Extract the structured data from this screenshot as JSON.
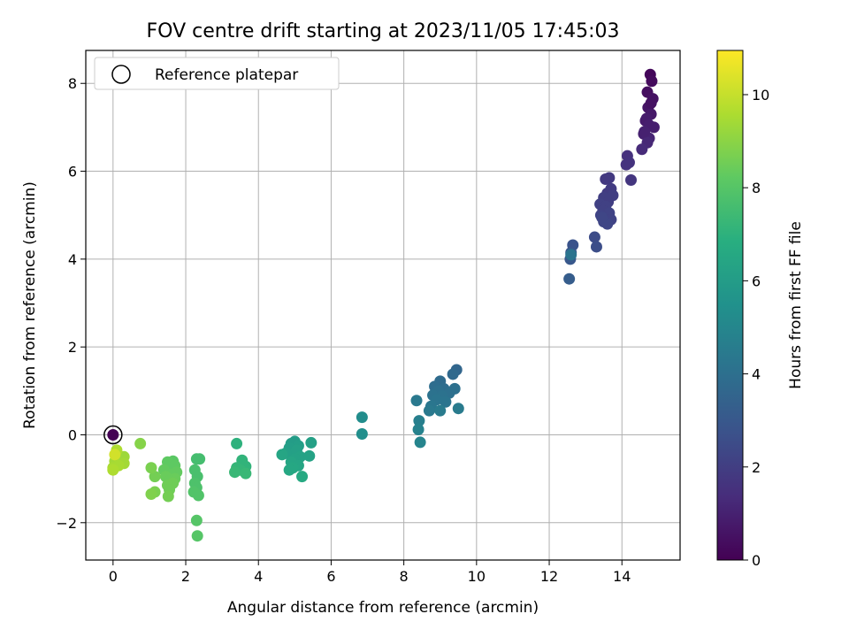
{
  "chart_data": {
    "type": "scatter",
    "title": "FOV centre drift starting at 2023/11/05 17:45:03",
    "xlabel": "Angular distance from reference (arcmin)",
    "ylabel": "Rotation from reference (arcmin)",
    "colorbar_label": "Hours from first FF file",
    "xlim": [
      -0.75,
      15.6
    ],
    "ylim": [
      -2.85,
      8.75
    ],
    "clim": [
      0,
      10.95
    ],
    "colormap": "viridis",
    "grid": true,
    "legend": {
      "position": "top-left",
      "entries": [
        "Reference platepar"
      ]
    },
    "x_ticks": [
      "0",
      "2",
      "4",
      "6",
      "8",
      "10",
      "12",
      "14"
    ],
    "y_ticks": [
      "−2",
      "0",
      "2",
      "4",
      "6",
      "8"
    ],
    "c_ticks": [
      "0",
      "2",
      "4",
      "6",
      "8",
      "10"
    ],
    "reference_point": {
      "x": 0,
      "y": 0
    },
    "points": [
      {
        "x": 14.78,
        "y": 8.2,
        "c": 0.2
      },
      {
        "x": 14.82,
        "y": 8.05,
        "c": 0.3
      },
      {
        "x": 14.7,
        "y": 7.8,
        "c": 0.4
      },
      {
        "x": 14.85,
        "y": 7.65,
        "c": 0.5
      },
      {
        "x": 14.72,
        "y": 7.45,
        "c": 0.6
      },
      {
        "x": 14.8,
        "y": 7.3,
        "c": 0.7
      },
      {
        "x": 14.65,
        "y": 7.15,
        "c": 0.8
      },
      {
        "x": 14.88,
        "y": 7.0,
        "c": 0.9
      },
      {
        "x": 14.6,
        "y": 6.85,
        "c": 1.0
      },
      {
        "x": 14.75,
        "y": 6.75,
        "c": 1.1
      },
      {
        "x": 14.7,
        "y": 6.65,
        "c": 1.2
      },
      {
        "x": 14.55,
        "y": 6.5,
        "c": 1.3
      },
      {
        "x": 14.8,
        "y": 7.55,
        "c": 0.5
      },
      {
        "x": 14.68,
        "y": 7.2,
        "c": 0.8
      },
      {
        "x": 14.75,
        "y": 7.05,
        "c": 0.9
      },
      {
        "x": 14.62,
        "y": 6.9,
        "c": 1.0
      },
      {
        "x": 14.15,
        "y": 6.35,
        "c": 1.5
      },
      {
        "x": 14.2,
        "y": 6.2,
        "c": 1.6
      },
      {
        "x": 14.12,
        "y": 6.15,
        "c": 1.6
      },
      {
        "x": 14.25,
        "y": 5.8,
        "c": 1.7
      },
      {
        "x": 13.65,
        "y": 5.85,
        "c": 1.8
      },
      {
        "x": 13.55,
        "y": 5.82,
        "c": 1.8
      },
      {
        "x": 13.7,
        "y": 5.6,
        "c": 1.9
      },
      {
        "x": 13.6,
        "y": 5.5,
        "c": 1.9
      },
      {
        "x": 13.75,
        "y": 5.45,
        "c": 2.0
      },
      {
        "x": 13.5,
        "y": 5.4,
        "c": 2.0
      },
      {
        "x": 13.62,
        "y": 5.3,
        "c": 2.0
      },
      {
        "x": 13.4,
        "y": 5.25,
        "c": 2.1
      },
      {
        "x": 13.55,
        "y": 5.2,
        "c": 2.1
      },
      {
        "x": 13.48,
        "y": 5.1,
        "c": 2.1
      },
      {
        "x": 13.65,
        "y": 5.05,
        "c": 2.2
      },
      {
        "x": 13.42,
        "y": 5.0,
        "c": 2.2
      },
      {
        "x": 13.7,
        "y": 4.9,
        "c": 2.2
      },
      {
        "x": 13.5,
        "y": 4.85,
        "c": 2.3
      },
      {
        "x": 13.6,
        "y": 4.8,
        "c": 2.3
      },
      {
        "x": 13.45,
        "y": 4.95,
        "c": 2.3
      },
      {
        "x": 13.25,
        "y": 4.5,
        "c": 2.5
      },
      {
        "x": 13.3,
        "y": 4.28,
        "c": 2.6
      },
      {
        "x": 12.65,
        "y": 4.32,
        "c": 2.8
      },
      {
        "x": 12.6,
        "y": 4.15,
        "c": 2.9
      },
      {
        "x": 12.58,
        "y": 4.0,
        "c": 3.0
      },
      {
        "x": 12.55,
        "y": 3.55,
        "c": 3.2
      },
      {
        "x": 12.6,
        "y": 4.1,
        "c": 4.2
      },
      {
        "x": 9.45,
        "y": 1.48,
        "c": 3.6
      },
      {
        "x": 9.35,
        "y": 1.38,
        "c": 3.7
      },
      {
        "x": 9.0,
        "y": 1.22,
        "c": 3.8
      },
      {
        "x": 8.85,
        "y": 1.1,
        "c": 3.9
      },
      {
        "x": 9.1,
        "y": 1.05,
        "c": 3.9
      },
      {
        "x": 9.4,
        "y": 1.05,
        "c": 4.0
      },
      {
        "x": 8.95,
        "y": 1.0,
        "c": 4.0
      },
      {
        "x": 9.25,
        "y": 0.95,
        "c": 4.0
      },
      {
        "x": 8.8,
        "y": 0.9,
        "c": 4.1
      },
      {
        "x": 9.05,
        "y": 0.88,
        "c": 4.1
      },
      {
        "x": 8.9,
        "y": 0.8,
        "c": 4.2
      },
      {
        "x": 9.15,
        "y": 0.75,
        "c": 4.2
      },
      {
        "x": 8.75,
        "y": 0.65,
        "c": 4.3
      },
      {
        "x": 8.35,
        "y": 0.78,
        "c": 4.4
      },
      {
        "x": 8.7,
        "y": 0.55,
        "c": 4.4
      },
      {
        "x": 9.0,
        "y": 0.55,
        "c": 4.5
      },
      {
        "x": 9.5,
        "y": 0.6,
        "c": 4.5
      },
      {
        "x": 8.42,
        "y": 0.32,
        "c": 4.7
      },
      {
        "x": 8.4,
        "y": 0.12,
        "c": 4.8
      },
      {
        "x": 8.45,
        "y": -0.17,
        "c": 4.9
      },
      {
        "x": 6.85,
        "y": 0.4,
        "c": 5.3
      },
      {
        "x": 6.85,
        "y": 0.02,
        "c": 5.4
      },
      {
        "x": 5.0,
        "y": -0.15,
        "c": 6.0
      },
      {
        "x": 4.9,
        "y": -0.2,
        "c": 6.0
      },
      {
        "x": 5.1,
        "y": -0.25,
        "c": 6.1
      },
      {
        "x": 4.85,
        "y": -0.3,
        "c": 6.1
      },
      {
        "x": 5.05,
        "y": -0.35,
        "c": 6.2
      },
      {
        "x": 4.95,
        "y": -0.45,
        "c": 6.2
      },
      {
        "x": 4.75,
        "y": -0.42,
        "c": 6.2
      },
      {
        "x": 5.15,
        "y": -0.5,
        "c": 6.3
      },
      {
        "x": 5.0,
        "y": -0.55,
        "c": 6.3
      },
      {
        "x": 4.9,
        "y": -0.62,
        "c": 6.4
      },
      {
        "x": 5.1,
        "y": -0.7,
        "c": 6.4
      },
      {
        "x": 4.95,
        "y": -0.75,
        "c": 6.5
      },
      {
        "x": 4.85,
        "y": -0.8,
        "c": 6.5
      },
      {
        "x": 5.2,
        "y": -0.95,
        "c": 6.6
      },
      {
        "x": 5.45,
        "y": -0.18,
        "c": 6.2
      },
      {
        "x": 5.4,
        "y": -0.48,
        "c": 6.3
      },
      {
        "x": 4.65,
        "y": -0.45,
        "c": 6.4
      },
      {
        "x": 3.4,
        "y": -0.2,
        "c": 7.0
      },
      {
        "x": 3.55,
        "y": -0.58,
        "c": 7.1
      },
      {
        "x": 3.65,
        "y": -0.72,
        "c": 7.1
      },
      {
        "x": 3.4,
        "y": -0.75,
        "c": 7.2
      },
      {
        "x": 3.5,
        "y": -0.8,
        "c": 7.2
      },
      {
        "x": 3.35,
        "y": -0.85,
        "c": 7.3
      },
      {
        "x": 3.65,
        "y": -0.88,
        "c": 7.3
      },
      {
        "x": 2.3,
        "y": -0.55,
        "c": 7.6
      },
      {
        "x": 2.38,
        "y": -0.55,
        "c": 7.6
      },
      {
        "x": 2.25,
        "y": -0.8,
        "c": 7.7
      },
      {
        "x": 2.32,
        "y": -0.95,
        "c": 7.7
      },
      {
        "x": 2.25,
        "y": -1.1,
        "c": 7.8
      },
      {
        "x": 2.3,
        "y": -1.2,
        "c": 7.8
      },
      {
        "x": 2.22,
        "y": -1.3,
        "c": 7.9
      },
      {
        "x": 2.35,
        "y": -1.38,
        "c": 7.9
      },
      {
        "x": 2.3,
        "y": -1.95,
        "c": 8.0
      },
      {
        "x": 2.32,
        "y": -2.3,
        "c": 8.0
      },
      {
        "x": 1.65,
        "y": -0.6,
        "c": 8.1
      },
      {
        "x": 1.5,
        "y": -0.62,
        "c": 8.2
      },
      {
        "x": 1.7,
        "y": -0.7,
        "c": 8.2
      },
      {
        "x": 1.55,
        "y": -0.75,
        "c": 8.2
      },
      {
        "x": 1.4,
        "y": -0.8,
        "c": 8.3
      },
      {
        "x": 1.75,
        "y": -0.85,
        "c": 8.3
      },
      {
        "x": 1.6,
        "y": -0.9,
        "c": 8.3
      },
      {
        "x": 1.45,
        "y": -0.95,
        "c": 8.4
      },
      {
        "x": 1.7,
        "y": -1.0,
        "c": 8.4
      },
      {
        "x": 1.55,
        "y": -1.05,
        "c": 8.4
      },
      {
        "x": 1.65,
        "y": -1.1,
        "c": 8.5
      },
      {
        "x": 1.5,
        "y": -1.15,
        "c": 8.5
      },
      {
        "x": 1.55,
        "y": -1.25,
        "c": 8.5
      },
      {
        "x": 1.52,
        "y": -1.4,
        "c": 8.6
      },
      {
        "x": 1.15,
        "y": -0.95,
        "c": 8.6
      },
      {
        "x": 1.05,
        "y": -0.75,
        "c": 8.7
      },
      {
        "x": 1.15,
        "y": -1.3,
        "c": 8.7
      },
      {
        "x": 1.05,
        "y": -1.35,
        "c": 8.8
      },
      {
        "x": 0.75,
        "y": -0.2,
        "c": 8.9
      },
      {
        "x": 0.3,
        "y": -0.5,
        "c": 9.3
      },
      {
        "x": 0.2,
        "y": -0.6,
        "c": 9.3
      },
      {
        "x": 0.3,
        "y": -0.65,
        "c": 9.4
      },
      {
        "x": 0.05,
        "y": -0.6,
        "c": 9.4
      },
      {
        "x": 0.15,
        "y": -0.7,
        "c": 9.5
      },
      {
        "x": 0.0,
        "y": -0.75,
        "c": 9.5
      },
      {
        "x": 0.1,
        "y": -0.35,
        "c": 9.6
      },
      {
        "x": 0.05,
        "y": -0.45,
        "c": 10.2
      },
      {
        "x": 0.0,
        "y": -0.8,
        "c": 9.6
      },
      {
        "x": 0.0,
        "y": 0.0,
        "c": 0.0
      }
    ]
  }
}
